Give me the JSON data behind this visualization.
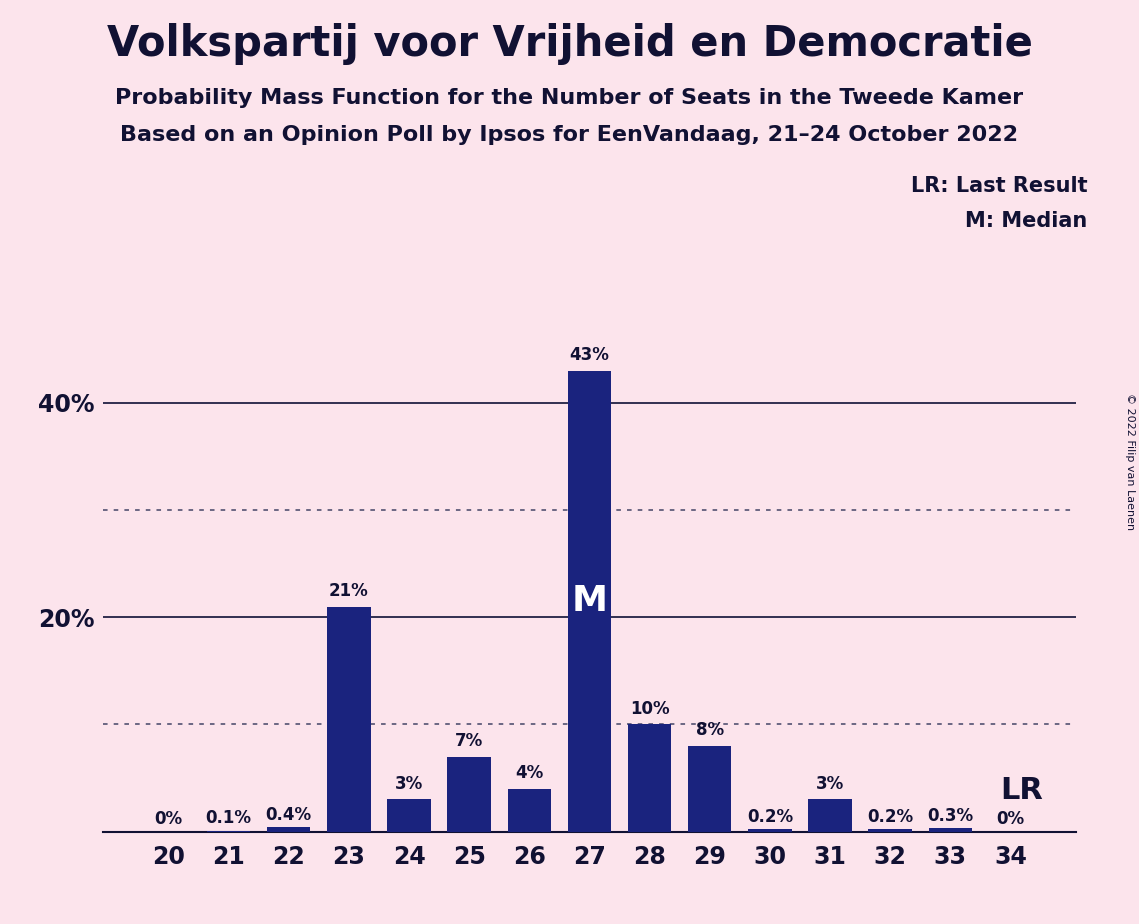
{
  "title": "Volkspartij voor Vrijheid en Democratie",
  "subtitle1": "Probability Mass Function for the Number of Seats in the Tweede Kamer",
  "subtitle2": "Based on an Opinion Poll by Ipsos for EenVandaag, 21–24 October 2022",
  "copyright": "© 2022 Filip van Laenen",
  "categories": [
    20,
    21,
    22,
    23,
    24,
    25,
    26,
    27,
    28,
    29,
    30,
    31,
    32,
    33,
    34
  ],
  "values": [
    0.0,
    0.1,
    0.4,
    21.0,
    3.0,
    7.0,
    4.0,
    43.0,
    10.0,
    8.0,
    0.2,
    3.0,
    0.2,
    0.3,
    0.0
  ],
  "labels": [
    "0%",
    "0.1%",
    "0.4%",
    "21%",
    "3%",
    "7%",
    "4%",
    "43%",
    "10%",
    "8%",
    "0.2%",
    "3%",
    "0.2%",
    "0.3%",
    "0%"
  ],
  "bar_color": "#1a237e",
  "background_color": "#fce4ec",
  "text_color": "#111133",
  "yticks": [
    0,
    20,
    40
  ],
  "ytick_labels": [
    "",
    "20%",
    "40%"
  ],
  "ylim": [
    0,
    50
  ],
  "median_seat": 27,
  "lr_seat": 34,
  "lr_label": "LR",
  "lr_legend": "LR: Last Result",
  "median_legend": "M: Median",
  "median_label": "M",
  "dotted_lines": [
    10,
    30
  ],
  "solid_lines": [
    20,
    40
  ],
  "title_fontsize": 30,
  "subtitle_fontsize": 16,
  "tick_fontsize": 17,
  "label_fontsize": 12
}
